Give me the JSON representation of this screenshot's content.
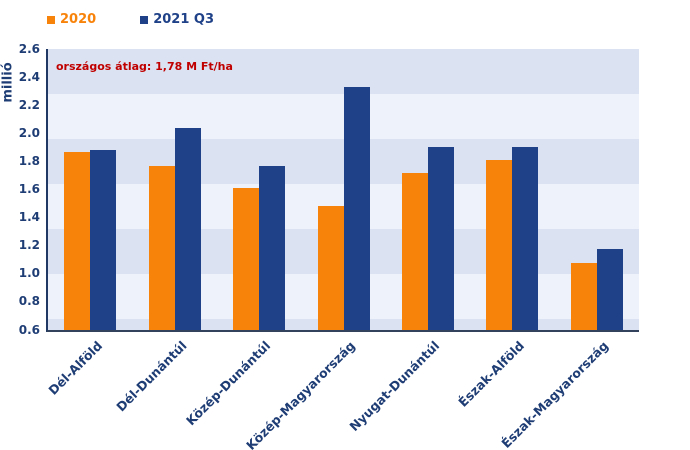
{
  "legend": {
    "items": [
      {
        "label": "2020",
        "color": "#f8830b"
      },
      {
        "label": "2021 Q3",
        "color": "#1f4188"
      }
    ]
  },
  "chart_data": {
    "type": "bar",
    "title": "",
    "categories": [
      "Dél-Alföld",
      "Dél-Dunántúl",
      "Közép-Dunántúl",
      "Közép-Magyarország",
      "Nyugat-Dunántúl",
      "Észak-Alföld",
      "Észak-Magyarország"
    ],
    "series": [
      {
        "name": "2020",
        "color": "#f8830b",
        "values": [
          1.87,
          1.77,
          1.61,
          1.48,
          1.72,
          1.81,
          1.08
        ]
      },
      {
        "name": "2021 Q3",
        "color": "#1f4188",
        "values": [
          1.88,
          2.04,
          1.77,
          2.33,
          1.9,
          1.9,
          1.18
        ]
      }
    ],
    "xlabel": "",
    "ylabel": "millió",
    "ylim": [
      0.6,
      2.6
    ],
    "ytick_step": 0.2,
    "yticks": [
      "2.6",
      "2.4",
      "2.2",
      "2.0",
      "1.8",
      "1.6",
      "1.4",
      "1.2",
      "1.0",
      "0.8",
      "0.6"
    ],
    "grid": "horizontal-bands",
    "plot_band_colors": [
      "#dbe2f1",
      "#eef2fa"
    ],
    "legend_position": "top-left",
    "annotation": {
      "text": "országos átlag: 1,78 M Ft/ha",
      "color": "#c00000"
    },
    "axis_text_color": "#1f3d75"
  }
}
